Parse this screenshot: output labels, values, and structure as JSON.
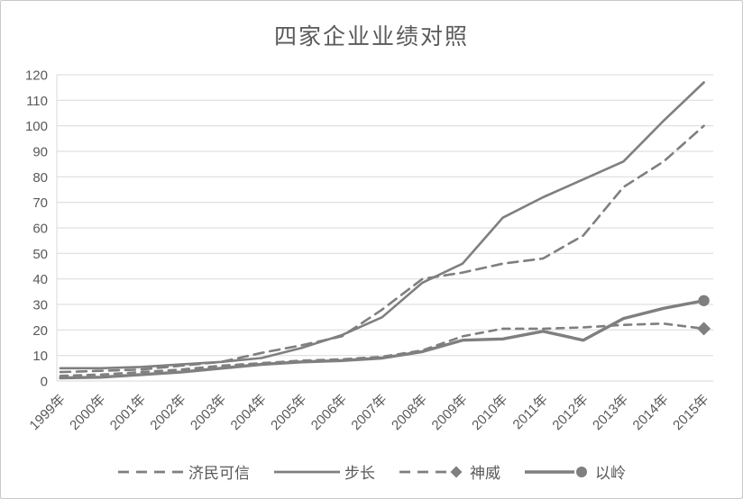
{
  "chart_data": {
    "type": "line",
    "title": "四家企业业绩对照",
    "categories": [
      "1999年",
      "2000年",
      "2001年",
      "2002年",
      "2003年",
      "2004年",
      "2005年",
      "2006年",
      "2007年",
      "2008年",
      "2009年",
      "2010年",
      "2011年",
      "2012年",
      "2013年",
      "2014年",
      "2015年"
    ],
    "series": [
      {
        "name": "济民可信",
        "style": "dashed",
        "marker": "none",
        "values": [
          3.5,
          4,
          4.5,
          6,
          7.5,
          11,
          14,
          17.5,
          28,
          40,
          42.5,
          46,
          48,
          57,
          76,
          86,
          100
        ]
      },
      {
        "name": "步长",
        "style": "solid",
        "marker": "none",
        "values": [
          5,
          5,
          5.5,
          6.5,
          7.5,
          9,
          13,
          18,
          25,
          38.5,
          46,
          64,
          72,
          79,
          86,
          102,
          117
        ]
      },
      {
        "name": "神威",
        "style": "dashed",
        "marker": "diamond",
        "values": [
          2,
          2.5,
          3.5,
          4.5,
          6,
          7,
          8,
          8.5,
          9.5,
          12,
          17.5,
          20.5,
          20.5,
          21,
          22,
          22.5,
          20.5
        ]
      },
      {
        "name": "以岭",
        "style": "solid",
        "marker": "circle",
        "values": [
          1.2,
          1.5,
          2.5,
          3.5,
          5,
          6.5,
          7.5,
          8,
          9,
          11.5,
          16,
          16.5,
          19.5,
          16,
          24.5,
          28.5,
          31.5
        ]
      }
    ],
    "xlabel": "",
    "ylabel": "",
    "ylim": [
      0,
      120
    ],
    "ytick_step": 10,
    "grid": true,
    "legend_position": "bottom",
    "colors": {
      "series": "#7f7f7f",
      "grid": "#d9d9d9",
      "text": "#595959"
    }
  }
}
